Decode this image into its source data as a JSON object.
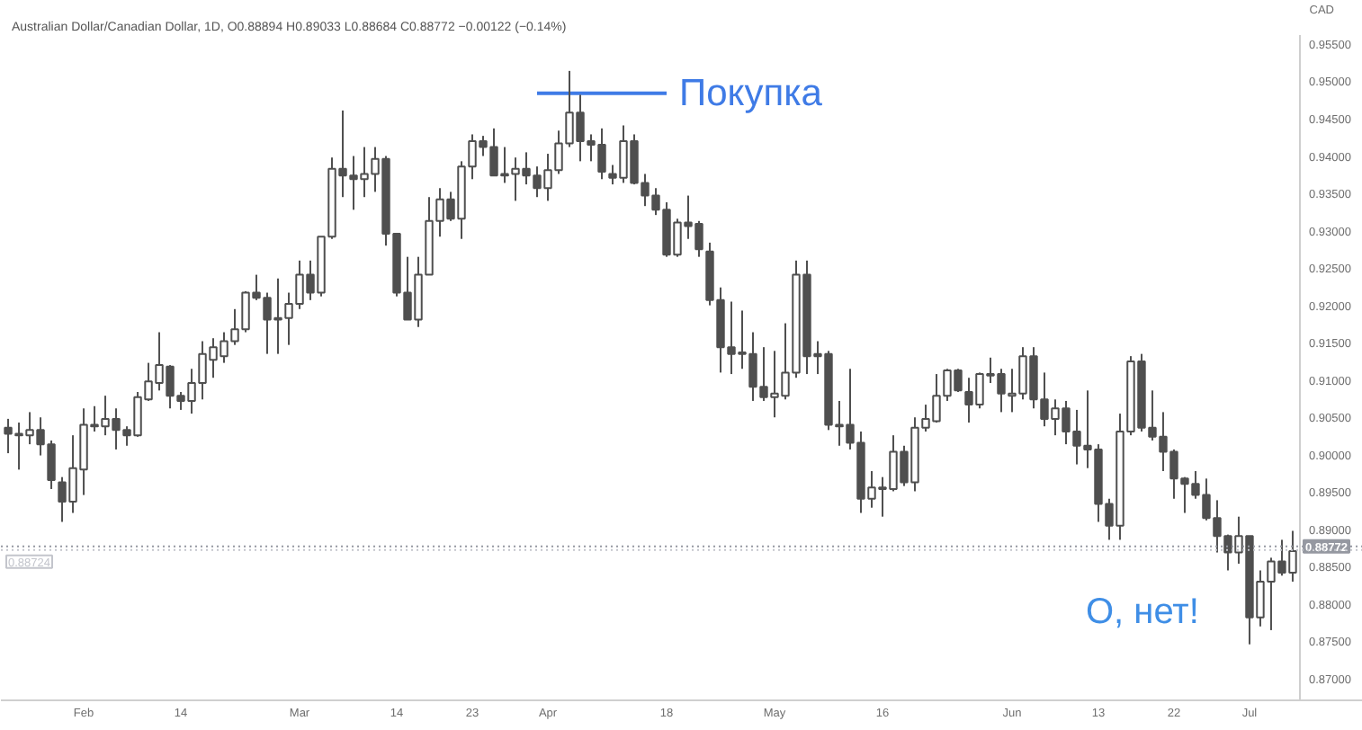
{
  "chart_data": {
    "type": "candlestick",
    "title": "Australian Dollar/Canadian Dollar, 1D, O0.88894 H0.89033 L0.88684 C0.88772 −0.00122 (−0.14%)",
    "ylabel": "CAD",
    "color": "#4f4f4f",
    "categories": [
      null,
      null,
      null,
      null,
      null,
      null,
      null,
      "Feb",
      null,
      null,
      null,
      null,
      null,
      null,
      null,
      null,
      "14",
      null,
      null,
      null,
      null,
      null,
      null,
      null,
      null,
      null,
      null,
      "Mar",
      null,
      null,
      null,
      null,
      null,
      null,
      null,
      null,
      "14",
      null,
      null,
      null,
      null,
      null,
      null,
      "23",
      null,
      null,
      null,
      null,
      null,
      null,
      "Apr",
      null,
      null,
      null,
      null,
      null,
      null,
      null,
      null,
      null,
      null,
      "18",
      null,
      null,
      null,
      null,
      null,
      null,
      null,
      null,
      null,
      "May",
      null,
      null,
      null,
      null,
      null,
      null,
      null,
      null,
      null,
      "16",
      null,
      null,
      null,
      null,
      null,
      null,
      null,
      null,
      null,
      null,
      null,
      "Jun",
      null,
      null,
      null,
      null,
      null,
      null,
      null,
      "13",
      null,
      null,
      null,
      null,
      null,
      null,
      "22",
      null,
      null,
      null,
      null,
      null,
      null,
      "Jul",
      null,
      null,
      null,
      null
    ],
    "ohlc": [
      [
        0.9036,
        0.9048,
        0.9002,
        0.9028
      ],
      [
        0.9028,
        0.9043,
        0.898,
        0.9026
      ],
      [
        0.9026,
        0.9057,
        0.9014,
        0.9033
      ],
      [
        0.9033,
        0.905,
        0.8999,
        0.9014
      ],
      [
        0.9014,
        0.9019,
        0.8954,
        0.8966
      ],
      [
        0.8963,
        0.897,
        0.891,
        0.8937
      ],
      [
        0.8937,
        0.9026,
        0.8922,
        0.8982
      ],
      [
        0.898,
        0.9062,
        0.8946,
        0.904
      ],
      [
        0.9038,
        0.9065,
        0.9031,
        0.904
      ],
      [
        0.9038,
        0.9079,
        0.9026,
        0.9048
      ],
      [
        0.9048,
        0.9062,
        0.9007,
        0.9033
      ],
      [
        0.9033,
        0.9038,
        0.9012,
        0.9026
      ],
      [
        0.9026,
        0.9084,
        0.9024,
        0.9077
      ],
      [
        0.9074,
        0.9123,
        0.9072,
        0.9098
      ],
      [
        0.9096,
        0.9164,
        0.9086,
        0.912
      ],
      [
        0.9118,
        0.912,
        0.9062,
        0.9079
      ],
      [
        0.9079,
        0.9084,
        0.906,
        0.9072
      ],
      [
        0.9072,
        0.9115,
        0.9055,
        0.9096
      ],
      [
        0.9096,
        0.9152,
        0.9074,
        0.9135
      ],
      [
        0.9127,
        0.9156,
        0.9103,
        0.9144
      ],
      [
        0.9132,
        0.9164,
        0.9123,
        0.9152
      ],
      [
        0.9152,
        0.9195,
        0.9147,
        0.9168
      ],
      [
        0.9168,
        0.9219,
        0.9164,
        0.9217
      ],
      [
        0.9217,
        0.9241,
        0.9207,
        0.921
      ],
      [
        0.921,
        0.9217,
        0.9135,
        0.9181
      ],
      [
        0.9183,
        0.9236,
        0.9135,
        0.9181
      ],
      [
        0.9183,
        0.9217,
        0.9147,
        0.9202
      ],
      [
        0.9202,
        0.926,
        0.9195,
        0.9241
      ],
      [
        0.9241,
        0.926,
        0.9207,
        0.9217
      ],
      [
        0.9217,
        0.9292,
        0.9212,
        0.9292
      ],
      [
        0.9292,
        0.9398,
        0.9289,
        0.9383
      ],
      [
        0.9383,
        0.9461,
        0.9345,
        0.9374
      ],
      [
        0.9374,
        0.94,
        0.9328,
        0.9369
      ],
      [
        0.9369,
        0.9412,
        0.9345,
        0.9376
      ],
      [
        0.9376,
        0.9412,
        0.9352,
        0.9396
      ],
      [
        0.9396,
        0.94,
        0.928,
        0.9296
      ],
      [
        0.9296,
        0.9296,
        0.9212,
        0.9217
      ],
      [
        0.9217,
        0.9265,
        0.9181,
        0.9181
      ],
      [
        0.9181,
        0.9265,
        0.9171,
        0.9241
      ],
      [
        0.9241,
        0.9345,
        0.9241,
        0.9313
      ],
      [
        0.9313,
        0.9357,
        0.9292,
        0.9342
      ],
      [
        0.9342,
        0.9352,
        0.9313,
        0.9316
      ],
      [
        0.9316,
        0.9393,
        0.9289,
        0.9386
      ],
      [
        0.9386,
        0.9429,
        0.9369,
        0.942
      ],
      [
        0.942,
        0.9427,
        0.94,
        0.9412
      ],
      [
        0.9412,
        0.9437,
        0.9374,
        0.9374
      ],
      [
        0.9376,
        0.9412,
        0.9364,
        0.9374
      ],
      [
        0.9376,
        0.9398,
        0.934,
        0.9383
      ],
      [
        0.9383,
        0.9405,
        0.9362,
        0.9374
      ],
      [
        0.9374,
        0.9386,
        0.9345,
        0.9357
      ],
      [
        0.9357,
        0.9403,
        0.934,
        0.9381
      ],
      [
        0.9381,
        0.9434,
        0.9376,
        0.9417
      ],
      [
        0.9417,
        0.9514,
        0.9412,
        0.9458
      ],
      [
        0.9458,
        0.9482,
        0.9393,
        0.942
      ],
      [
        0.942,
        0.9429,
        0.9393,
        0.9415
      ],
      [
        0.9415,
        0.9437,
        0.9369,
        0.9379
      ],
      [
        0.9376,
        0.9388,
        0.9362,
        0.9371
      ],
      [
        0.9371,
        0.9441,
        0.9364,
        0.942
      ],
      [
        0.942,
        0.9429,
        0.9362,
        0.9364
      ],
      [
        0.9364,
        0.9376,
        0.9333,
        0.9347
      ],
      [
        0.9347,
        0.9357,
        0.9321,
        0.9328
      ],
      [
        0.9328,
        0.9338,
        0.9265,
        0.9268
      ],
      [
        0.9268,
        0.9316,
        0.9265,
        0.9311
      ],
      [
        0.9311,
        0.9347,
        0.9289,
        0.9306
      ],
      [
        0.9309,
        0.9313,
        0.9265,
        0.9275
      ],
      [
        0.9272,
        0.9284,
        0.92,
        0.9207
      ],
      [
        0.9207,
        0.9224,
        0.911,
        0.9144
      ],
      [
        0.9144,
        0.9205,
        0.9108,
        0.9135
      ],
      [
        0.9137,
        0.9193,
        0.9115,
        0.9135
      ],
      [
        0.9135,
        0.9164,
        0.9072,
        0.9091
      ],
      [
        0.9091,
        0.9144,
        0.9072,
        0.9077
      ],
      [
        0.9077,
        0.9139,
        0.905,
        0.9082
      ],
      [
        0.9079,
        0.9176,
        0.9074,
        0.911
      ],
      [
        0.911,
        0.926,
        0.9103,
        0.9241
      ],
      [
        0.9241,
        0.926,
        0.9108,
        0.9132
      ],
      [
        0.9135,
        0.9152,
        0.9108,
        0.9132
      ],
      [
        0.9135,
        0.9139,
        0.9033,
        0.904
      ],
      [
        0.904,
        0.9072,
        0.9012,
        0.9038
      ],
      [
        0.904,
        0.9115,
        0.9007,
        0.9016
      ],
      [
        0.9016,
        0.9031,
        0.8922,
        0.8941
      ],
      [
        0.8941,
        0.8978,
        0.8929,
        0.8956
      ],
      [
        0.8956,
        0.897,
        0.8917,
        0.8954
      ],
      [
        0.8954,
        0.9026,
        0.8951,
        0.9004
      ],
      [
        0.9004,
        0.9012,
        0.8958,
        0.8963
      ],
      [
        0.8963,
        0.905,
        0.8951,
        0.9036
      ],
      [
        0.9036,
        0.9067,
        0.9031,
        0.9048
      ],
      [
        0.9045,
        0.9108,
        0.9043,
        0.9079
      ],
      [
        0.9079,
        0.9115,
        0.9072,
        0.9113
      ],
      [
        0.9113,
        0.9115,
        0.9084,
        0.9086
      ],
      [
        0.9084,
        0.9103,
        0.9043,
        0.9067
      ],
      [
        0.9067,
        0.911,
        0.9062,
        0.9108
      ],
      [
        0.9106,
        0.913,
        0.9096,
        0.9108
      ],
      [
        0.9108,
        0.9115,
        0.9057,
        0.9082
      ],
      [
        0.9079,
        0.9115,
        0.9057,
        0.9082
      ],
      [
        0.9082,
        0.9144,
        0.9074,
        0.9132
      ],
      [
        0.9132,
        0.9144,
        0.9062,
        0.9074
      ],
      [
        0.9074,
        0.911,
        0.9038,
        0.9048
      ],
      [
        0.9048,
        0.9074,
        0.9026,
        0.9062
      ],
      [
        0.9062,
        0.9072,
        0.9014,
        0.9031
      ],
      [
        0.9031,
        0.906,
        0.8987,
        0.9012
      ],
      [
        0.9012,
        0.9086,
        0.8982,
        0.9007
      ],
      [
        0.9007,
        0.9014,
        0.891,
        0.8934
      ],
      [
        0.8934,
        0.8941,
        0.8886,
        0.8905
      ],
      [
        0.8905,
        0.9055,
        0.8886,
        0.9031
      ],
      [
        0.9031,
        0.9132,
        0.9026,
        0.9125
      ],
      [
        0.9125,
        0.9135,
        0.9031,
        0.9036
      ],
      [
        0.9036,
        0.9086,
        0.9019,
        0.9024
      ],
      [
        0.9024,
        0.9057,
        0.8978,
        0.9004
      ],
      [
        0.9004,
        0.9007,
        0.8941,
        0.8968
      ],
      [
        0.8968,
        0.897,
        0.8922,
        0.8961
      ],
      [
        0.8961,
        0.8978,
        0.8941,
        0.8946
      ],
      [
        0.8946,
        0.8968,
        0.8912,
        0.8915
      ],
      [
        0.8915,
        0.8939,
        0.8869,
        0.8891
      ],
      [
        0.8891,
        0.8893,
        0.8845,
        0.8869
      ],
      [
        0.8869,
        0.8917,
        0.8854,
        0.8891
      ],
      [
        0.8891,
        0.8891,
        0.8746,
        0.8782
      ],
      [
        0.8782,
        0.8845,
        0.877,
        0.883
      ],
      [
        0.883,
        0.8862,
        0.8765,
        0.8857
      ],
      [
        0.8857,
        0.8886,
        0.8838,
        0.8842
      ],
      [
        0.8842,
        0.8898,
        0.883,
        0.8871
      ]
    ],
    "series": [
      {
        "type": "line",
        "name": "Покупка",
        "color": "#3f7be6",
        "values": [
          null,
          null,
          null,
          null,
          null,
          null,
          null,
          null,
          null,
          null,
          null,
          null,
          null,
          null,
          null,
          null,
          null,
          null,
          null,
          null,
          null,
          null,
          null,
          null,
          null,
          null,
          null,
          null,
          null,
          null,
          null,
          null,
          null,
          null,
          null,
          null,
          null,
          null,
          null,
          null,
          null,
          null,
          null,
          null,
          null,
          null,
          null,
          null,
          null,
          0.9484,
          0.9484,
          0.9484,
          0.9484,
          0.9484,
          0.9484,
          0.9484,
          0.9484,
          0.9484,
          0.9484,
          0.9484,
          0.9484,
          0.9484,
          null,
          null,
          null,
          null,
          null,
          null,
          null,
          null,
          null,
          null,
          null,
          null,
          null,
          null,
          null,
          null,
          null,
          null,
          null,
          null,
          null,
          null,
          null,
          null,
          null,
          null,
          null,
          null,
          null,
          null,
          null,
          null,
          null,
          null,
          null,
          null,
          null,
          null,
          null,
          null,
          null,
          null,
          null,
          null,
          null,
          null,
          null,
          null,
          null,
          null,
          null,
          null,
          null,
          null,
          null,
          null,
          null,
          null
        ]
      }
    ],
    "ylim": [
      0.8671,
      0.9562
    ],
    "yticks": [
      {
        "value": 0.87,
        "label": "0.87000"
      },
      {
        "value": 0.875,
        "label": "0.87500"
      },
      {
        "value": 0.88,
        "label": "0.88000"
      },
      {
        "value": 0.885,
        "label": "0.88500"
      },
      {
        "value": 0.89,
        "label": "0.89000"
      },
      {
        "value": 0.895,
        "label": "0.89500"
      },
      {
        "value": 0.9,
        "label": "0.90000"
      },
      {
        "value": 0.905,
        "label": "0.90500"
      },
      {
        "value": 0.91,
        "label": "0.91000"
      },
      {
        "value": 0.915,
        "label": "0.91500"
      },
      {
        "value": 0.92,
        "label": "0.92000"
      },
      {
        "value": 0.925,
        "label": "0.92500"
      },
      {
        "value": 0.93,
        "label": "0.93000"
      },
      {
        "value": 0.935,
        "label": "0.93500"
      },
      {
        "value": 0.94,
        "label": "0.94000"
      },
      {
        "value": 0.945,
        "label": "0.94500"
      },
      {
        "value": 0.95,
        "label": "0.95000"
      },
      {
        "value": 0.955,
        "label": "0.95500"
      }
    ],
    "ref_lines": [
      {
        "axis": "y",
        "value": 0.88772,
        "label": "0.88772",
        "color": "#9598a1",
        "line_style": "dotted"
      },
      {
        "axis": "y",
        "value": 0.88724,
        "label": "0.88724",
        "color": "#c3c5cc",
        "line_style": "dotted"
      }
    ],
    "annotations": [
      "О, нет!"
    ]
  }
}
